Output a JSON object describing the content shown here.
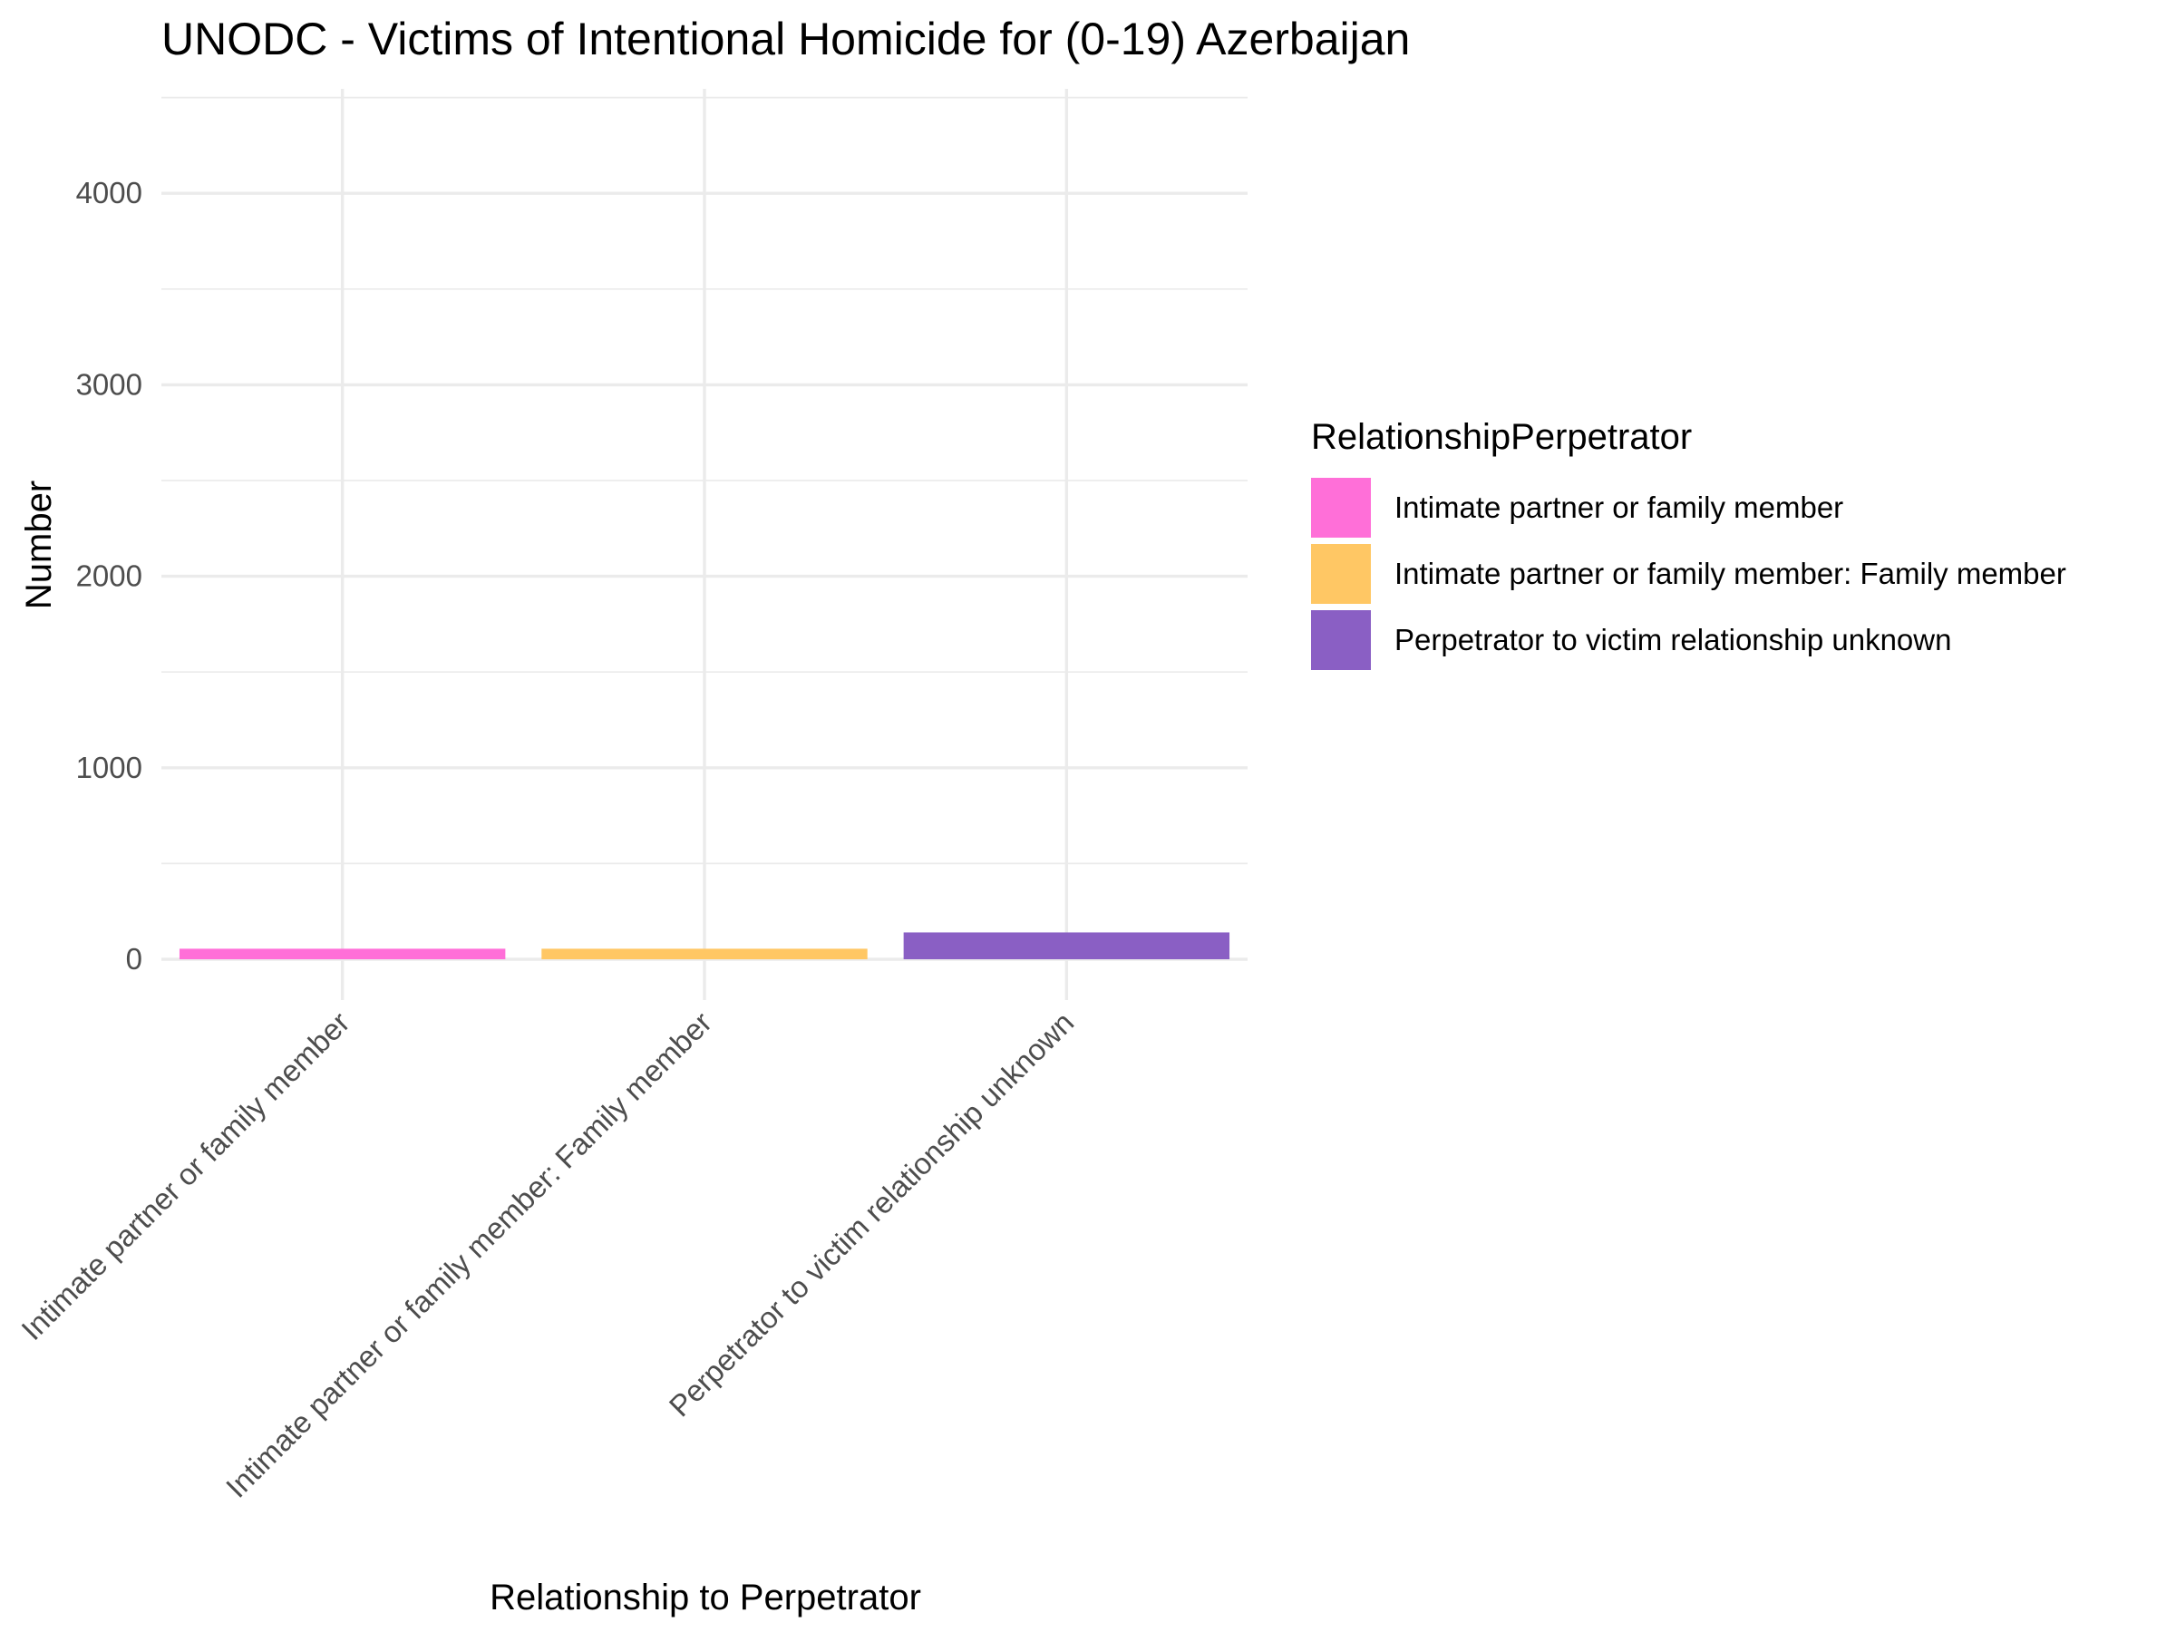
{
  "chart_data": {
    "type": "bar",
    "title": "UNODC - Victims of Intentional Homicide for (0-19) Azerbaijan",
    "xlabel": "Relationship to Perpetrator",
    "ylabel": "Number",
    "categories": [
      "Intimate partner or family member",
      "Intimate partner or family member: Family member",
      "Perpetrator to victim relationship unknown"
    ],
    "values": [
      55,
      55,
      140
    ],
    "colors": [
      "#FF6FD8",
      "#FFC764",
      "#8A5FC4"
    ],
    "ylim": [
      0,
      4550
    ],
    "yticks": [
      0,
      1000,
      2000,
      3000,
      4000
    ],
    "grid": true,
    "legend": {
      "title": "RelationshipPerpetrator",
      "placement": "right",
      "entries": [
        "Intimate partner or family member",
        "Intimate partner or family member: Family member",
        "Perpetrator to victim relationship unknown"
      ]
    }
  }
}
